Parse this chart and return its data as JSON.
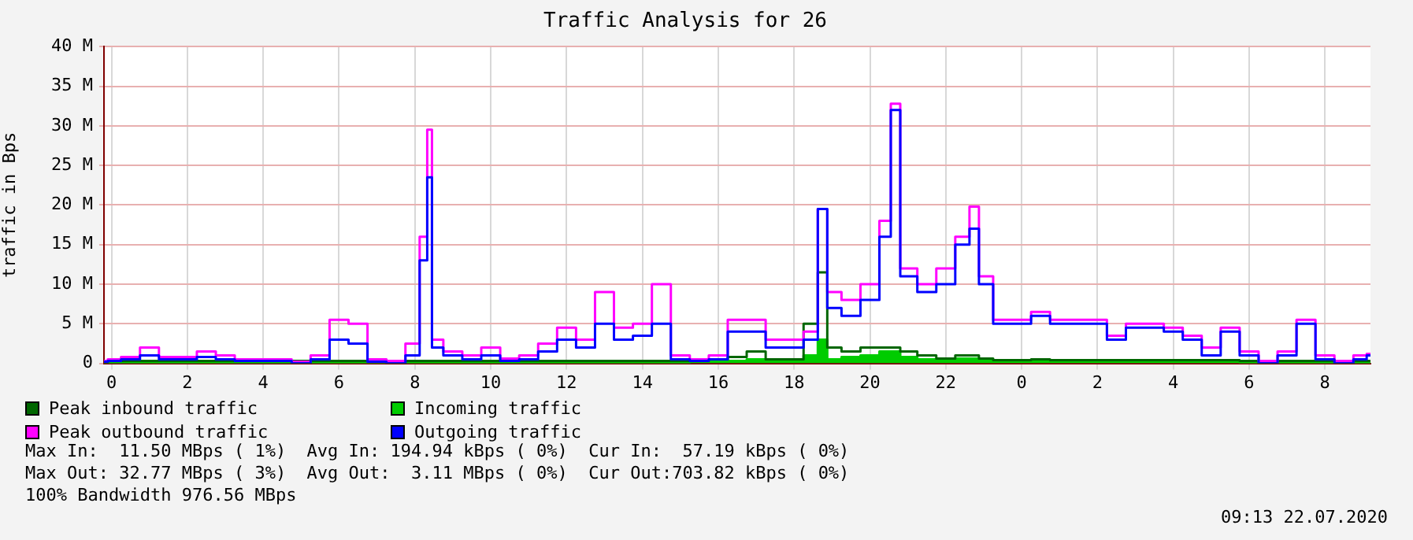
{
  "chart_data": {
    "type": "step",
    "title": "Traffic Analysis for 26",
    "ylabel": "traffic in Bps",
    "x": [
      "2020-07-20T23:48",
      "2020-07-21T00:00",
      "2020-07-21T00:30",
      "2020-07-21T01:00",
      "2020-07-21T01:30",
      "2020-07-21T02:00",
      "2020-07-21T02:30",
      "2020-07-21T03:00",
      "2020-07-21T03:30",
      "2020-07-21T04:00",
      "2020-07-21T04:30",
      "2020-07-21T05:00",
      "2020-07-21T05:30",
      "2020-07-21T06:00",
      "2020-07-21T06:30",
      "2020-07-21T07:00",
      "2020-07-21T07:30",
      "2020-07-21T08:00",
      "2020-07-21T08:15",
      "2020-07-21T08:24",
      "2020-07-21T08:30",
      "2020-07-21T09:00",
      "2020-07-21T09:30",
      "2020-07-21T10:00",
      "2020-07-21T10:30",
      "2020-07-21T11:00",
      "2020-07-21T11:30",
      "2020-07-21T12:00",
      "2020-07-21T12:30",
      "2020-07-21T13:00",
      "2020-07-21T13:30",
      "2020-07-21T14:00",
      "2020-07-21T14:30",
      "2020-07-21T15:00",
      "2020-07-21T15:30",
      "2020-07-21T16:00",
      "2020-07-21T16:30",
      "2020-07-21T17:00",
      "2020-07-21T17:30",
      "2020-07-21T18:00",
      "2020-07-21T18:30",
      "2020-07-21T18:45",
      "2020-07-21T19:00",
      "2020-07-21T19:30",
      "2020-07-21T20:00",
      "2020-07-21T20:30",
      "2020-07-21T20:36",
      "2020-07-21T21:00",
      "2020-07-21T21:30",
      "2020-07-21T22:00",
      "2020-07-21T22:30",
      "2020-07-21T22:45",
      "2020-07-21T23:00",
      "2020-07-21T23:30",
      "2020-07-22T00:00",
      "2020-07-22T00:30",
      "2020-07-22T01:00",
      "2020-07-22T01:30",
      "2020-07-22T02:00",
      "2020-07-22T02:30",
      "2020-07-22T03:00",
      "2020-07-22T03:30",
      "2020-07-22T04:00",
      "2020-07-22T04:30",
      "2020-07-22T05:00",
      "2020-07-22T05:30",
      "2020-07-22T06:00",
      "2020-07-22T06:30",
      "2020-07-22T07:00",
      "2020-07-22T07:30",
      "2020-07-22T08:00",
      "2020-07-22T08:30",
      "2020-07-22T09:00",
      "2020-07-22T09:12"
    ],
    "series": [
      {
        "name": "Peak inbound traffic",
        "color": "#006600",
        "values": [
          0.1,
          0.3,
          0.3,
          0.3,
          0.3,
          0.3,
          0.3,
          0.3,
          0.3,
          0.3,
          0.3,
          0.3,
          0.3,
          0.3,
          0.3,
          0.3,
          0.3,
          0.3,
          0.3,
          0.3,
          0.3,
          0.3,
          0.3,
          0.3,
          0.3,
          0.3,
          0.3,
          0.3,
          0.3,
          0.3,
          0.3,
          0.3,
          0.3,
          0.3,
          0.5,
          0.5,
          0.8,
          1.5,
          0.5,
          0.5,
          5,
          11.5,
          2,
          1.5,
          2,
          2,
          2,
          1.5,
          1,
          0.6,
          1,
          1,
          0.6,
          0.4,
          0.4,
          0.5,
          0.4,
          0.4,
          0.4,
          0.4,
          0.4,
          0.4,
          0.4,
          0.4,
          0.4,
          0.4,
          0.3,
          0.3,
          0.3,
          0.3,
          0.3,
          0.3,
          0.3,
          0.3
        ]
      },
      {
        "name": "Incoming traffic",
        "type": "area",
        "color": "#00cc00",
        "values": [
          0,
          0.1,
          0.1,
          0.1,
          0.1,
          0.1,
          0.1,
          0.1,
          0.1,
          0.1,
          0.1,
          0.1,
          0.1,
          0.1,
          0.1,
          0.1,
          0.1,
          0.1,
          0.1,
          0.1,
          0.1,
          0.1,
          0.1,
          0.1,
          0.1,
          0.1,
          0.1,
          0.1,
          0.1,
          0.1,
          0.1,
          0.1,
          0.1,
          0.1,
          0.2,
          0.2,
          0.3,
          0.5,
          0.3,
          0.3,
          1,
          3,
          0.5,
          0.8,
          1,
          1.5,
          1.5,
          0.8,
          0.5,
          0.3,
          0.6,
          0.6,
          0.3,
          0.2,
          0.2,
          0.3,
          0.2,
          0.2,
          0.2,
          0.2,
          0.2,
          0.2,
          0.2,
          0.2,
          0.2,
          0.2,
          0.1,
          0.1,
          0.1,
          0.1,
          0.1,
          0.1,
          0.1,
          0.1
        ]
      },
      {
        "name": "Peak outbound traffic",
        "color": "#ff00ff",
        "values": [
          0.3,
          0.5,
          0.8,
          2,
          0.8,
          0.8,
          1.5,
          1,
          0.5,
          0.5,
          0.5,
          0.2,
          1,
          5.5,
          5,
          0.5,
          0.3,
          2.5,
          16,
          29.5,
          3,
          1.5,
          1,
          2,
          0.6,
          1,
          2.5,
          4.5,
          3,
          9,
          4.5,
          5,
          10,
          1,
          0.5,
          1,
          5.5,
          5.5,
          3,
          3,
          4,
          19.5,
          9,
          8,
          10,
          18,
          32.8,
          12,
          10,
          12,
          16,
          19.8,
          11,
          5.5,
          5.5,
          6.5,
          5.5,
          5.5,
          5.5,
          3.5,
          5,
          5,
          4.5,
          3.5,
          2,
          4.5,
          1.5,
          0.3,
          1.5,
          5.5,
          1,
          0.3,
          1,
          1.2
        ]
      },
      {
        "name": "Outgoing traffic",
        "color": "#0000ff",
        "values": [
          0.2,
          0.3,
          0.5,
          1,
          0.5,
          0.5,
          0.8,
          0.5,
          0.3,
          0.3,
          0.3,
          0,
          0.5,
          3,
          2.5,
          0.2,
          0,
          1,
          13,
          23.5,
          2,
          1,
          0.5,
          1,
          0.3,
          0.5,
          1.5,
          3,
          2,
          5,
          3,
          3.5,
          5,
          0.5,
          0.3,
          0.5,
          4,
          4,
          2,
          2,
          3,
          19.5,
          7,
          6,
          8,
          16,
          32,
          11,
          9,
          10,
          15,
          17,
          10,
          5,
          5,
          6,
          5,
          5,
          5,
          3,
          4.5,
          4.5,
          4,
          3,
          1,
          4,
          1,
          0,
          1,
          5,
          0.5,
          0,
          0.5,
          1
        ]
      }
    ],
    "xlim": [
      "2020-07-20T23:48",
      "2020-07-22T09:12"
    ],
    "xticks": [
      {
        "value": "2020-07-21T00:00",
        "label": "0"
      },
      {
        "value": "2020-07-21T02:00",
        "label": "2"
      },
      {
        "value": "2020-07-21T04:00",
        "label": "4"
      },
      {
        "value": "2020-07-21T06:00",
        "label": "6"
      },
      {
        "value": "2020-07-21T08:00",
        "label": "8"
      },
      {
        "value": "2020-07-21T10:00",
        "label": "10"
      },
      {
        "value": "2020-07-21T12:00",
        "label": "12"
      },
      {
        "value": "2020-07-21T14:00",
        "label": "14"
      },
      {
        "value": "2020-07-21T16:00",
        "label": "16"
      },
      {
        "value": "2020-07-21T18:00",
        "label": "18"
      },
      {
        "value": "2020-07-21T20:00",
        "label": "20"
      },
      {
        "value": "2020-07-21T22:00",
        "label": "22"
      },
      {
        "value": "2020-07-22T00:00",
        "label": "0"
      },
      {
        "value": "2020-07-22T02:00",
        "label": "2"
      },
      {
        "value": "2020-07-22T04:00",
        "label": "4"
      },
      {
        "value": "2020-07-22T06:00",
        "label": "6"
      },
      {
        "value": "2020-07-22T08:00",
        "label": "8"
      }
    ],
    "ylim": [
      0,
      40
    ],
    "yticks": [
      0,
      {
        "value": 5,
        "label": "5 M"
      },
      {
        "value": 10,
        "label": "10 M"
      },
      {
        "value": 15,
        "label": "15 M"
      },
      {
        "value": 20,
        "label": "20 M"
      },
      {
        "value": 25,
        "label": "25 M"
      },
      {
        "value": 30,
        "label": "30 M"
      },
      {
        "value": 35,
        "label": "35 M"
      },
      {
        "value": 40,
        "label": "40 M"
      }
    ],
    "grid": true,
    "legend": "bottom",
    "marker": "none",
    "line_style": "solid",
    "annotations": [
      "Max In:  11.50 MBps ( 1%)  Avg In: 194.94 kBps ( 0%)  Cur In:  57.19 kBps ( 0%)",
      "Max Out: 32.77 MBps ( 3%)  Avg Out:  3.11 MBps ( 0%)  Cur Out:703.82 kBps ( 0%)",
      "100% Bandwidth 976.56 MBps",
      "09:13 22.07.2020"
    ]
  }
}
